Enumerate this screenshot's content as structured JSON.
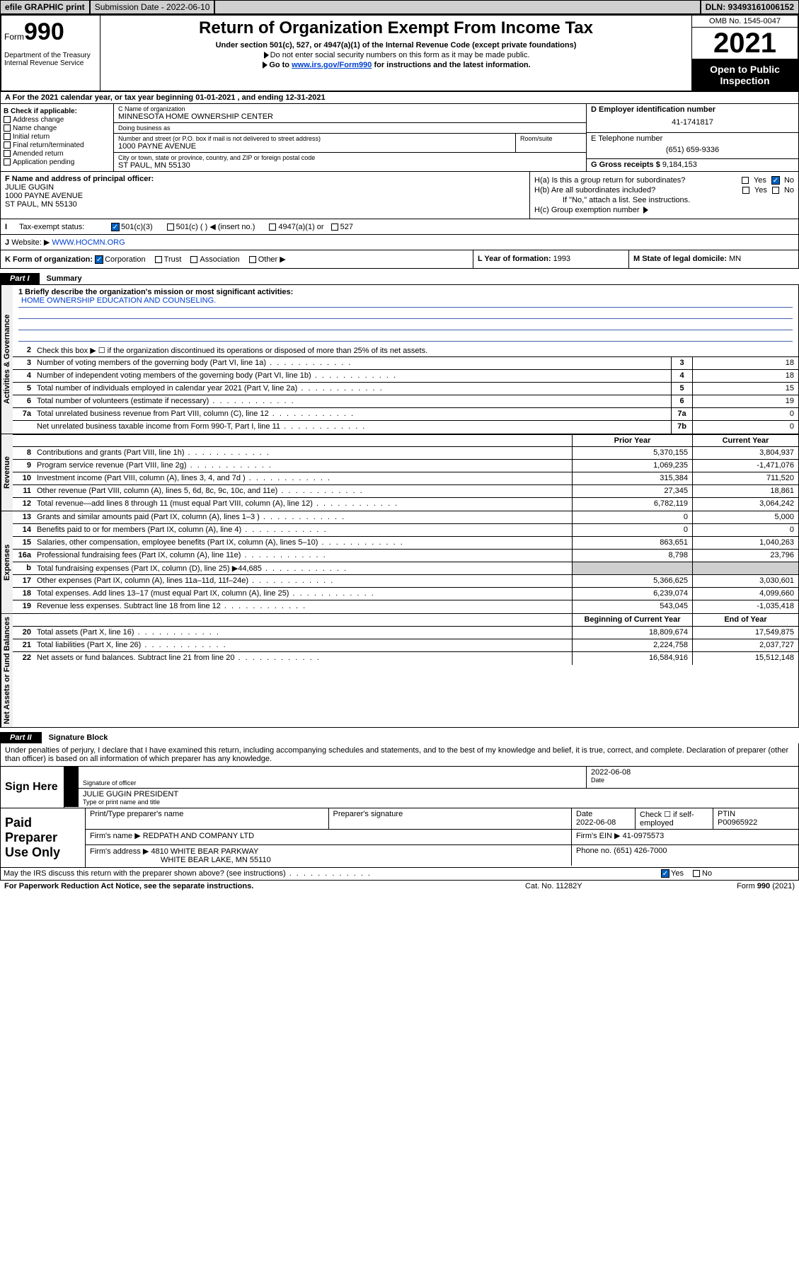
{
  "topbar": {
    "efile": "efile GRAPHIC print",
    "submission": "Submission Date - 2022-06-10",
    "dln": "DLN: 93493161006152"
  },
  "header": {
    "form_prefix": "Form",
    "form_num": "990",
    "dept": "Department of the Treasury\nInternal Revenue Service",
    "title": "Return of Organization Exempt From Income Tax",
    "sub1": "Under section 501(c), 527, or 4947(a)(1) of the Internal Revenue Code (except private foundations)",
    "sub2": "Do not enter social security numbers on this form as it may be made public.",
    "sub3_pre": "Go to ",
    "sub3_link": "www.irs.gov/Form990",
    "sub3_post": " for instructions and the latest information.",
    "omb": "OMB No. 1545-0047",
    "year": "2021",
    "openpub": "Open to Public Inspection"
  },
  "rowA": "For the 2021 calendar year, or tax year beginning 01-01-2021  , and ending 12-31-2021",
  "colB": {
    "label": "B Check if applicable:",
    "items": [
      "Address change",
      "Name change",
      "Initial return",
      "Final return/terminated",
      "Amended return",
      "Application pending"
    ]
  },
  "colC": {
    "name_label": "C Name of organization",
    "name": "MINNESOTA HOME OWNERSHIP CENTER",
    "dba_label": "Doing business as",
    "dba": "",
    "addr_label": "Number and street (or P.O. box if mail is not delivered to street address)",
    "room_label": "Room/suite",
    "addr": "1000 PAYNE AVENUE",
    "city_label": "City or town, state or province, country, and ZIP or foreign postal code",
    "city": "ST PAUL, MN  55130"
  },
  "colD": {
    "label": "D Employer identification number",
    "val": "41-1741817"
  },
  "colE": {
    "label": "E Telephone number",
    "val": "(651) 659-9336"
  },
  "colG": {
    "label": "G Gross receipts $",
    "val": "9,184,153"
  },
  "colF": {
    "label": "F Name and address of principal officer:",
    "name": "JULIE GUGIN",
    "addr1": "1000 PAYNE AVENUE",
    "addr2": "ST PAUL, MN  55130"
  },
  "colH": {
    "ha": "H(a)  Is this a group return for subordinates?",
    "ha_yes": "Yes",
    "ha_no": "No",
    "hb": "H(b)  Are all subordinates included?",
    "hb_yes": "Yes",
    "hb_no": "No",
    "hb_note": "If \"No,\" attach a list. See instructions.",
    "hc": "H(c)  Group exemption number"
  },
  "rowI": {
    "label": "Tax-exempt status:",
    "opt1": "501(c)(3)",
    "opt2": "501(c) (   ) ◀ (insert no.)",
    "opt3": "4947(a)(1) or",
    "opt4": "527"
  },
  "rowJ": {
    "label": "Website: ▶",
    "val": "WWW.HOCMN.ORG"
  },
  "rowK": {
    "label": "K Form of organization:",
    "opts": [
      "Corporation",
      "Trust",
      "Association",
      "Other ▶"
    ]
  },
  "rowL": {
    "label": "L Year of formation:",
    "val": "1993"
  },
  "rowM": {
    "label": "M State of legal domicile:",
    "val": "MN"
  },
  "part1": {
    "tag": "Part I",
    "title": "Summary",
    "mission_label": "1  Briefly describe the organization's mission or most significant activities:",
    "mission": "HOME OWNERSHIP EDUCATION AND COUNSELING.",
    "line2": "Check this box ▶ ☐ if the organization discontinued its operations or disposed of more than 25% of its net assets.",
    "sections": {
      "gov": "Activities & Governance",
      "rev": "Revenue",
      "exp": "Expenses",
      "net": "Net Assets or Fund Balances"
    },
    "col_headers": {
      "prior": "Prior Year",
      "current": "Current Year",
      "begin": "Beginning of Current Year",
      "end": "End of Year"
    },
    "gov_rows": [
      {
        "n": "3",
        "d": "Number of voting members of the governing body (Part VI, line 1a)",
        "b": "3",
        "v": "18"
      },
      {
        "n": "4",
        "d": "Number of independent voting members of the governing body (Part VI, line 1b)",
        "b": "4",
        "v": "18"
      },
      {
        "n": "5",
        "d": "Total number of individuals employed in calendar year 2021 (Part V, line 2a)",
        "b": "5",
        "v": "15"
      },
      {
        "n": "6",
        "d": "Total number of volunteers (estimate if necessary)",
        "b": "6",
        "v": "19"
      },
      {
        "n": "7a",
        "d": "Total unrelated business revenue from Part VIII, column (C), line 12",
        "b": "7a",
        "v": "0"
      },
      {
        "n": "",
        "d": "Net unrelated business taxable income from Form 990-T, Part I, line 11",
        "b": "7b",
        "v": "0"
      }
    ],
    "rev_rows": [
      {
        "n": "8",
        "d": "Contributions and grants (Part VIII, line 1h)",
        "p": "5,370,155",
        "c": "3,804,937"
      },
      {
        "n": "9",
        "d": "Program service revenue (Part VIII, line 2g)",
        "p": "1,069,235",
        "c": "-1,471,076"
      },
      {
        "n": "10",
        "d": "Investment income (Part VIII, column (A), lines 3, 4, and 7d )",
        "p": "315,384",
        "c": "711,520"
      },
      {
        "n": "11",
        "d": "Other revenue (Part VIII, column (A), lines 5, 6d, 8c, 9c, 10c, and 11e)",
        "p": "27,345",
        "c": "18,861"
      },
      {
        "n": "12",
        "d": "Total revenue—add lines 8 through 11 (must equal Part VIII, column (A), line 12)",
        "p": "6,782,119",
        "c": "3,064,242"
      }
    ],
    "exp_rows": [
      {
        "n": "13",
        "d": "Grants and similar amounts paid (Part IX, column (A), lines 1–3 )",
        "p": "0",
        "c": "5,000"
      },
      {
        "n": "14",
        "d": "Benefits paid to or for members (Part IX, column (A), line 4)",
        "p": "0",
        "c": "0"
      },
      {
        "n": "15",
        "d": "Salaries, other compensation, employee benefits (Part IX, column (A), lines 5–10)",
        "p": "863,651",
        "c": "1,040,263"
      },
      {
        "n": "16a",
        "d": "Professional fundraising fees (Part IX, column (A), line 11e)",
        "p": "8,798",
        "c": "23,796"
      },
      {
        "n": "b",
        "d": "Total fundraising expenses (Part IX, column (D), line 25) ▶44,685",
        "p": "",
        "c": "",
        "shade": true
      },
      {
        "n": "17",
        "d": "Other expenses (Part IX, column (A), lines 11a–11d, 11f–24e)",
        "p": "5,366,625",
        "c": "3,030,601"
      },
      {
        "n": "18",
        "d": "Total expenses. Add lines 13–17 (must equal Part IX, column (A), line 25)",
        "p": "6,239,074",
        "c": "4,099,660"
      },
      {
        "n": "19",
        "d": "Revenue less expenses. Subtract line 18 from line 12",
        "p": "543,045",
        "c": "-1,035,418"
      }
    ],
    "net_rows": [
      {
        "n": "20",
        "d": "Total assets (Part X, line 16)",
        "p": "18,809,674",
        "c": "17,549,875"
      },
      {
        "n": "21",
        "d": "Total liabilities (Part X, line 26)",
        "p": "2,224,758",
        "c": "2,037,727"
      },
      {
        "n": "22",
        "d": "Net assets or fund balances. Subtract line 21 from line 20",
        "p": "16,584,916",
        "c": "15,512,148"
      }
    ]
  },
  "part2": {
    "tag": "Part II",
    "title": "Signature Block",
    "intro": "Under penalties of perjury, I declare that I have examined this return, including accompanying schedules and statements, and to the best of my knowledge and belief, it is true, correct, and complete. Declaration of preparer (other than officer) is based on all information of which preparer has any knowledge.",
    "sign_here": "Sign Here",
    "sig_officer": "Signature of officer",
    "sig_date": "2022-06-08",
    "date_label": "Date",
    "name_title": "JULIE GUGIN  PRESIDENT",
    "name_title_label": "Type or print name and title",
    "paid": "Paid Preparer Use Only",
    "prep_name_label": "Print/Type preparer's name",
    "prep_sig_label": "Preparer's signature",
    "prep_date": "2022-06-08",
    "self_emp": "Check ☐ if self-employed",
    "ptin_label": "PTIN",
    "ptin": "P00965922",
    "firm_name_label": "Firm's name ▶",
    "firm_name": "REDPATH AND COMPANY LTD",
    "firm_ein_label": "Firm's EIN ▶",
    "firm_ein": "41-0975573",
    "firm_addr_label": "Firm's address ▶",
    "firm_addr1": "4810 WHITE BEAR PARKWAY",
    "firm_addr2": "WHITE BEAR LAKE, MN  55110",
    "phone_label": "Phone no.",
    "phone": "(651) 426-7000",
    "discuss": "May the IRS discuss this return with the preparer shown above? (see instructions)",
    "yes": "Yes",
    "no": "No"
  },
  "footer": {
    "l": "For Paperwork Reduction Act Notice, see the separate instructions.",
    "m": "Cat. No. 11282Y",
    "r": "Form 990 (2021)"
  }
}
